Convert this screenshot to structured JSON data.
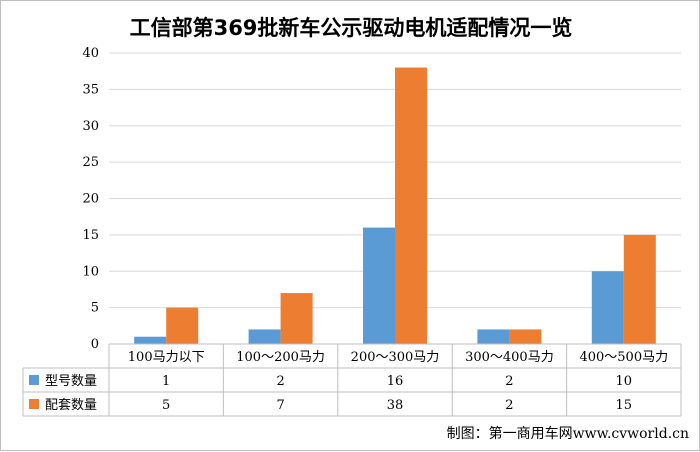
{
  "chart_data": {
    "type": "bar",
    "title": "工信部第369批新车公示驱动电机适配情况一览",
    "categories": [
      "100马力以下",
      "100～200马力",
      "200～300马力",
      "300～400马力",
      "400～500马力"
    ],
    "series": [
      {
        "name": "型号数量",
        "values": [
          1,
          2,
          16,
          2,
          10
        ],
        "color": "#5b9bd5"
      },
      {
        "name": "配套数量",
        "values": [
          5,
          7,
          38,
          2,
          15
        ],
        "color": "#ed7d31"
      }
    ],
    "yticks": [
      "0",
      "5",
      "10",
      "15",
      "20",
      "25",
      "30",
      "35",
      "40"
    ],
    "ylim": [
      0,
      40
    ],
    "grid": true,
    "data_table": true
  },
  "credit": "制图：第一商用车网www.cvworld.cn"
}
